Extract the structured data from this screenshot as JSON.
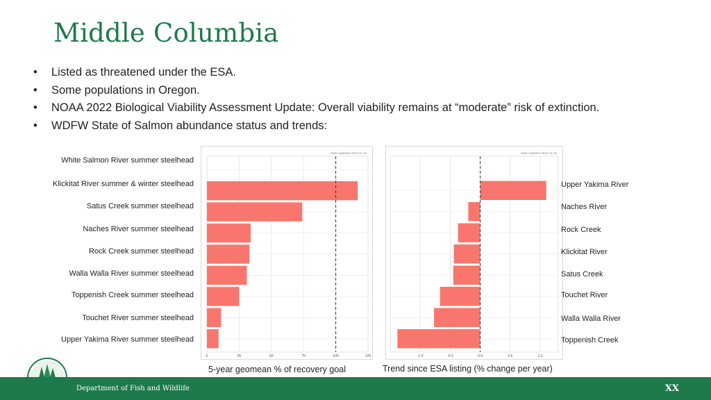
{
  "slide": {
    "title": "Middle Columbia",
    "bullets": [
      "Listed as threatened under the ESA.",
      "Some populations in Oregon.",
      "NOAA 2022 Biological Viability Assessment Update: Overall viability remains at “moderate” risk of extinction.",
      "WDFW State of Salmon abundance status and trends:"
    ]
  },
  "footer": {
    "org": "Department of Fish and Wildlife",
    "page": "XX",
    "color": "#1e7a4a"
  },
  "colors": {
    "bar": "#f8766d",
    "title": "#1e7a4a"
  },
  "chart_data": [
    {
      "type": "bar",
      "orientation": "horizontal",
      "note_text": "Data Updated 2022-11-10",
      "categories": [
        "White Salmon River summer steelhead",
        "Klickitat River summer & winter steelhead",
        "Satus Creek summer steelhead",
        "Naches River summer steelhead",
        "Rock Creek summer steelhead",
        "Walla Walla River summer steelhead",
        "Toppenish Creek summer steelhead",
        "Touchet River summer steelhead",
        "Upper Yakima River summer steelhead"
      ],
      "values": [
        null,
        117,
        74,
        34,
        33,
        31,
        25,
        11,
        9
      ],
      "xlim": [
        0,
        125
      ],
      "xticks": [
        0,
        25,
        50,
        75,
        100,
        125
      ],
      "reference_line": 100,
      "xlabel": "5-year geomean % of recovery goal",
      "grid": true
    },
    {
      "type": "bar",
      "orientation": "horizontal",
      "note_text": "Data Updated 2022-11-10",
      "categories": [
        "Upper Yakima River",
        "Naches River",
        "Rock Creek",
        "Klickitat River",
        "Satus Creek",
        "Touchet River",
        "Walla Walla River",
        "Toppenish Creek"
      ],
      "values": [
        1.1,
        -0.2,
        -0.37,
        -0.44,
        -0.45,
        -0.67,
        -0.77,
        -1.38
      ],
      "xlim": [
        -1.5,
        1.3
      ],
      "xticks": [
        -1.0,
        -0.5,
        0.0,
        0.5,
        1.0
      ],
      "reference_line": 0,
      "xlabel": "Trend since ESA listing (% change per year)",
      "grid": true
    }
  ]
}
